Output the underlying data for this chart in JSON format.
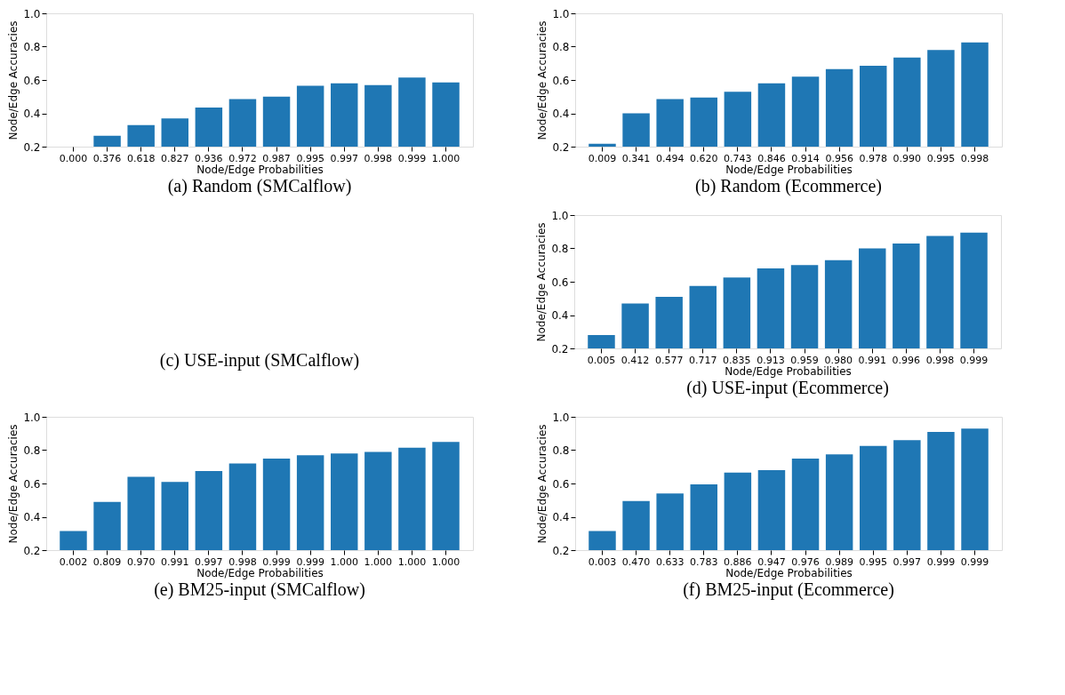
{
  "chart_data": [
    {
      "type": "bar",
      "title": "(a) Random (SMCalflow)",
      "xlabel": "Node/Edge Probabilities",
      "ylabel": "Node/Edge Accuracies",
      "categories": [
        "0.000",
        "0.376",
        "0.618",
        "0.827",
        "0.936",
        "0.972",
        "0.987",
        "0.995",
        "0.997",
        "0.998",
        "0.999",
        "1.000"
      ],
      "values": [
        null,
        0.265,
        0.33,
        0.37,
        0.435,
        0.485,
        0.5,
        0.565,
        0.58,
        0.57,
        0.615,
        0.585
      ],
      "color": "#1f77b4",
      "ylim": [
        0.2,
        1.0
      ],
      "yticks": [
        {
          "value": 0.2,
          "label": "0.2"
        },
        {
          "value": 0.4,
          "label": "0.4"
        },
        {
          "value": 0.6,
          "label": "0.6"
        },
        {
          "value": 0.8,
          "label": "0.8"
        },
        {
          "value": 1.0,
          "label": "1.0"
        }
      ],
      "grid": false
    },
    {
      "type": "bar",
      "title": "(b) Random (Ecommerce)",
      "xlabel": "Node/Edge Probabilities",
      "ylabel": "Node/Edge Accuracies",
      "categories": [
        "0.009",
        "0.341",
        "0.494",
        "0.620",
        "0.743",
        "0.846",
        "0.914",
        "0.956",
        "0.978",
        "0.990",
        "0.995",
        "0.998"
      ],
      "values": [
        0.217,
        0.4,
        0.485,
        0.495,
        0.53,
        0.58,
        0.62,
        0.665,
        0.685,
        0.735,
        0.78,
        0.825
      ],
      "color": "#1f77b4",
      "ylim": [
        0.2,
        1.0
      ],
      "yticks": [
        {
          "value": 0.2,
          "label": "0.2"
        },
        {
          "value": 0.4,
          "label": "0.4"
        },
        {
          "value": 0.6,
          "label": "0.6"
        },
        {
          "value": 0.8,
          "label": "0.8"
        },
        {
          "value": 1.0,
          "label": "1.0"
        }
      ],
      "grid": false
    },
    {
      "type": "other",
      "title": "(c) USE-input (SMCalflow)"
    },
    {
      "type": "bar",
      "title": "(d) USE-input (Ecommerce)",
      "xlabel": "Node/Edge Probabilities",
      "ylabel": "Node/Edge Accuracies",
      "categories": [
        "0.005",
        "0.412",
        "0.577",
        "0.717",
        "0.835",
        "0.913",
        "0.959",
        "0.980",
        "0.991",
        "0.996",
        "0.998",
        "0.999"
      ],
      "values": [
        0.28,
        0.47,
        0.51,
        0.575,
        0.625,
        0.68,
        0.7,
        0.73,
        0.8,
        0.83,
        0.875,
        0.895
      ],
      "color": "#1f77b4",
      "ylim": [
        0.2,
        1.0
      ],
      "yticks": [
        {
          "value": 0.2,
          "label": "0.2"
        },
        {
          "value": 0.4,
          "label": "0.4"
        },
        {
          "value": 0.6,
          "label": "0.6"
        },
        {
          "value": 0.8,
          "label": "0.8"
        },
        {
          "value": 1.0,
          "label": "1.0"
        }
      ],
      "grid": false
    },
    {
      "type": "bar",
      "title": "(e) BM25-input (SMCalflow)",
      "xlabel": "Node/Edge Probabilities",
      "ylabel": "Node/Edge Accuracies",
      "categories": [
        "0.002",
        "0.809",
        "0.970",
        "0.991",
        "0.997",
        "0.998",
        "0.999",
        "0.999",
        "1.000",
        "1.000",
        "1.000",
        "1.000"
      ],
      "values": [
        0.315,
        0.49,
        0.64,
        0.61,
        0.675,
        0.72,
        0.75,
        0.77,
        0.78,
        0.79,
        0.815,
        0.85
      ],
      "color": "#1f77b4",
      "ylim": [
        0.2,
        1.0
      ],
      "yticks": [
        {
          "value": 0.2,
          "label": "0.2"
        },
        {
          "value": 0.4,
          "label": "0.4"
        },
        {
          "value": 0.6,
          "label": "0.6"
        },
        {
          "value": 0.8,
          "label": "0.8"
        },
        {
          "value": 1.0,
          "label": "1.0"
        }
      ],
      "grid": false
    },
    {
      "type": "bar",
      "title": "(f) BM25-input (Ecommerce)",
      "xlabel": "Node/Edge Probabilities",
      "ylabel": "Node/Edge Accuracies",
      "categories": [
        "0.003",
        "0.470",
        "0.633",
        "0.783",
        "0.886",
        "0.947",
        "0.976",
        "0.989",
        "0.995",
        "0.997",
        "0.999",
        "0.999"
      ],
      "values": [
        0.315,
        0.495,
        0.54,
        0.595,
        0.665,
        0.68,
        0.75,
        0.775,
        0.825,
        0.86,
        0.91,
        0.93
      ],
      "color": "#1f77b4",
      "ylim": [
        0.2,
        1.0
      ],
      "yticks": [
        {
          "value": 0.2,
          "label": "0.2"
        },
        {
          "value": 0.4,
          "label": "0.4"
        },
        {
          "value": 0.6,
          "label": "0.6"
        },
        {
          "value": 0.8,
          "label": "0.8"
        },
        {
          "value": 1.0,
          "label": "1.0"
        }
      ],
      "grid": false
    }
  ]
}
